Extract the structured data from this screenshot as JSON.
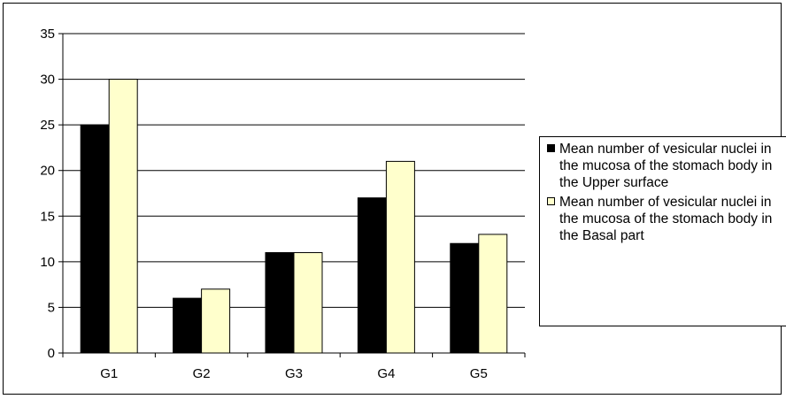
{
  "chart_data": {
    "type": "bar",
    "categories": [
      "G1",
      "G2",
      "G3",
      "G4",
      "G5"
    ],
    "series": [
      {
        "name": "Mean number of vesicular nuclei in the mucosa of the stomach body in the Upper surface",
        "values": [
          25,
          6,
          11,
          17,
          12
        ],
        "color": "#000000"
      },
      {
        "name": "Mean number of vesicular nuclei in the mucosa of the stomach body in the Basal part",
        "values": [
          30,
          7,
          11,
          21,
          13
        ],
        "color": "#ffffcc"
      }
    ],
    "title": "",
    "xlabel": "",
    "ylabel": "",
    "ylim": [
      0,
      35
    ],
    "yticks": [
      0,
      5,
      10,
      15,
      20,
      25,
      30,
      35
    ],
    "grid": true,
    "legend_position": "right"
  }
}
